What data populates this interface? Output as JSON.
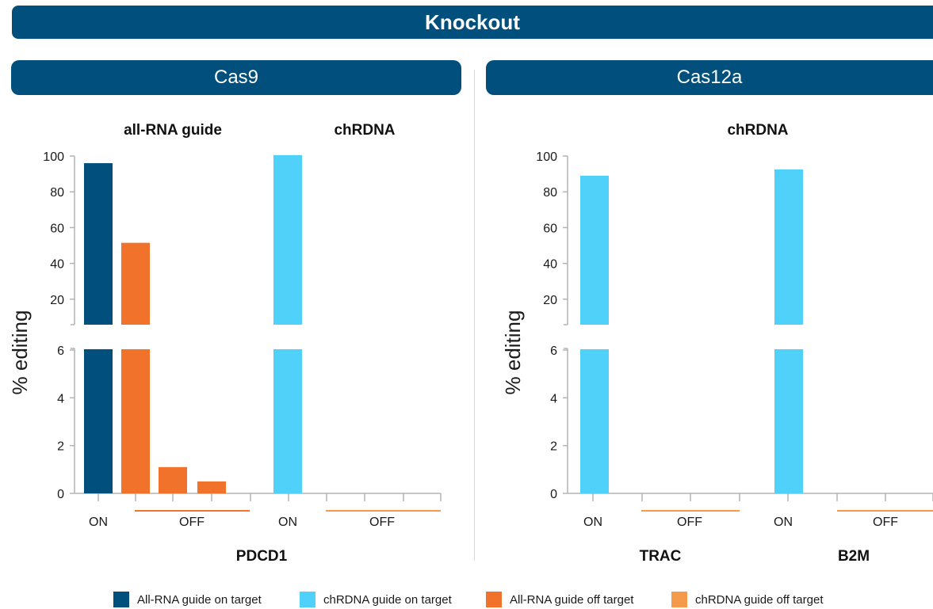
{
  "banner": "Knockout",
  "panels": {
    "cas9": {
      "title": "Cas9"
    },
    "cas12a": {
      "title": "Cas12a"
    }
  },
  "colors": {
    "allrna_on": "#004f7c",
    "chrdna_on": "#4fd1f9",
    "allrna_off": "#f0722b",
    "chrdna_off": "#f59a4a",
    "axis": "#b3b3b3"
  },
  "legend": [
    {
      "label": "All-RNA guide on target",
      "color": "#004f7c"
    },
    {
      "label": "chRDNA guide on target",
      "color": "#4fd1f9"
    },
    {
      "label": "All-RNA guide off target",
      "color": "#f0722b"
    },
    {
      "label": "chRDNA guide off target",
      "color": "#f59a4a"
    }
  ],
  "chart_data": [
    {
      "type": "bar",
      "panel": "Cas9",
      "ylabel": "% editing",
      "axis_break": true,
      "upper_ticks": [
        20,
        40,
        60,
        80,
        100
      ],
      "lower_ticks": [
        0,
        2,
        4,
        6
      ],
      "groups": [
        {
          "label": "all-RNA guide",
          "categories": [
            "ON",
            "OFF",
            "OFF",
            "OFF"
          ],
          "series": [
            {
              "name": "All-RNA guide on target",
              "values": [
                96,
                null,
                null,
                null
              ]
            },
            {
              "name": "All-RNA guide off target",
              "values": [
                null,
                51.5,
                1.1,
                0.5
              ]
            }
          ]
        },
        {
          "label": "chRDNA",
          "categories": [
            "ON",
            "OFF",
            "OFF",
            "OFF"
          ],
          "series": [
            {
              "name": "chRDNA guide on target",
              "values": [
                100.5,
                null,
                null,
                null
              ]
            },
            {
              "name": "chRDNA guide off target",
              "values": [
                null,
                0,
                0,
                0
              ]
            }
          ]
        }
      ],
      "tick_labels": [
        "ON",
        "OFF",
        "ON",
        "OFF"
      ],
      "target": "PDCD1"
    },
    {
      "type": "bar",
      "panel": "Cas12a",
      "ylabel": "% editing",
      "axis_break": true,
      "upper_ticks": [
        20,
        40,
        60,
        80,
        100
      ],
      "lower_ticks": [
        0,
        2,
        4,
        6
      ],
      "group_label": "chRDNA",
      "groups": [
        {
          "target": "TRAC",
          "categories": [
            "ON",
            "OFF",
            "OFF"
          ],
          "series": [
            {
              "name": "chRDNA guide on target",
              "values": [
                89,
                null,
                null
              ]
            },
            {
              "name": "chRDNA guide off target",
              "values": [
                null,
                0,
                0
              ]
            }
          ]
        },
        {
          "target": "B2M",
          "categories": [
            "ON",
            "OFF",
            "OFF"
          ],
          "series": [
            {
              "name": "chRDNA guide on target",
              "values": [
                92.5,
                null,
                null
              ]
            },
            {
              "name": "chRDNA guide off target",
              "values": [
                null,
                0,
                0
              ]
            }
          ]
        }
      ],
      "tick_labels": [
        "ON",
        "OFF",
        "ON",
        "OFF"
      ],
      "targets": [
        "TRAC",
        "B2M"
      ]
    }
  ]
}
